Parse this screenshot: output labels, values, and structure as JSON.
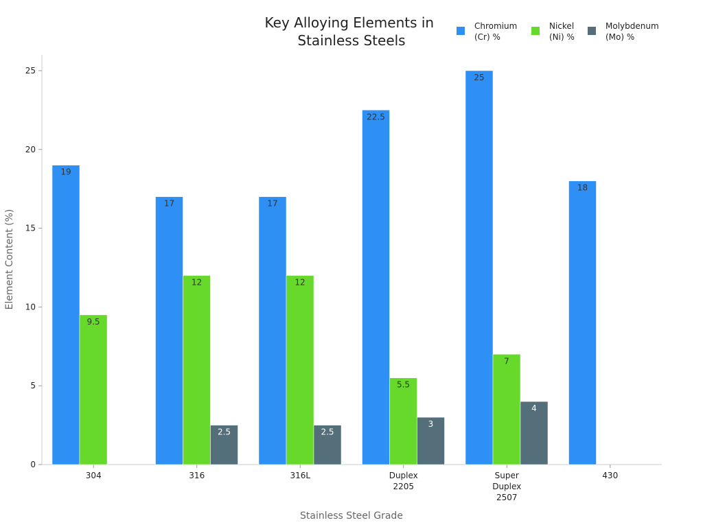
{
  "chart_data": {
    "type": "bar",
    "title": [
      "Key Alloying Elements in",
      "Stainless Steels"
    ],
    "xlabel": "Stainless Steel Grade",
    "ylabel": "Element Content (%)",
    "ylim": [
      0,
      26
    ],
    "yticks": [
      0,
      5,
      10,
      15,
      20,
      25
    ],
    "grid": false,
    "legend_position": "top-right",
    "categories": [
      [
        "304"
      ],
      [
        "316"
      ],
      [
        "316L"
      ],
      [
        "Duplex",
        "2205"
      ],
      [
        "Super",
        "Duplex",
        "2507"
      ],
      [
        "430"
      ]
    ],
    "series": [
      {
        "name": [
          "Chromium",
          "(Cr) %"
        ],
        "color": "#2E90F5",
        "label_color": "#333333",
        "values": [
          19,
          17,
          17,
          22.5,
          25,
          18
        ]
      },
      {
        "name": [
          "Nickel",
          "(Ni) %"
        ],
        "color": "#66D92A",
        "label_color": "#333333",
        "values": [
          9.5,
          12,
          12,
          5.5,
          7,
          null
        ]
      },
      {
        "name": [
          "Molybdenum",
          "(Mo) %"
        ],
        "color": "#546E7A",
        "label_color": "#ffffff",
        "values": [
          null,
          2.5,
          2.5,
          3,
          4,
          null
        ]
      }
    ]
  }
}
